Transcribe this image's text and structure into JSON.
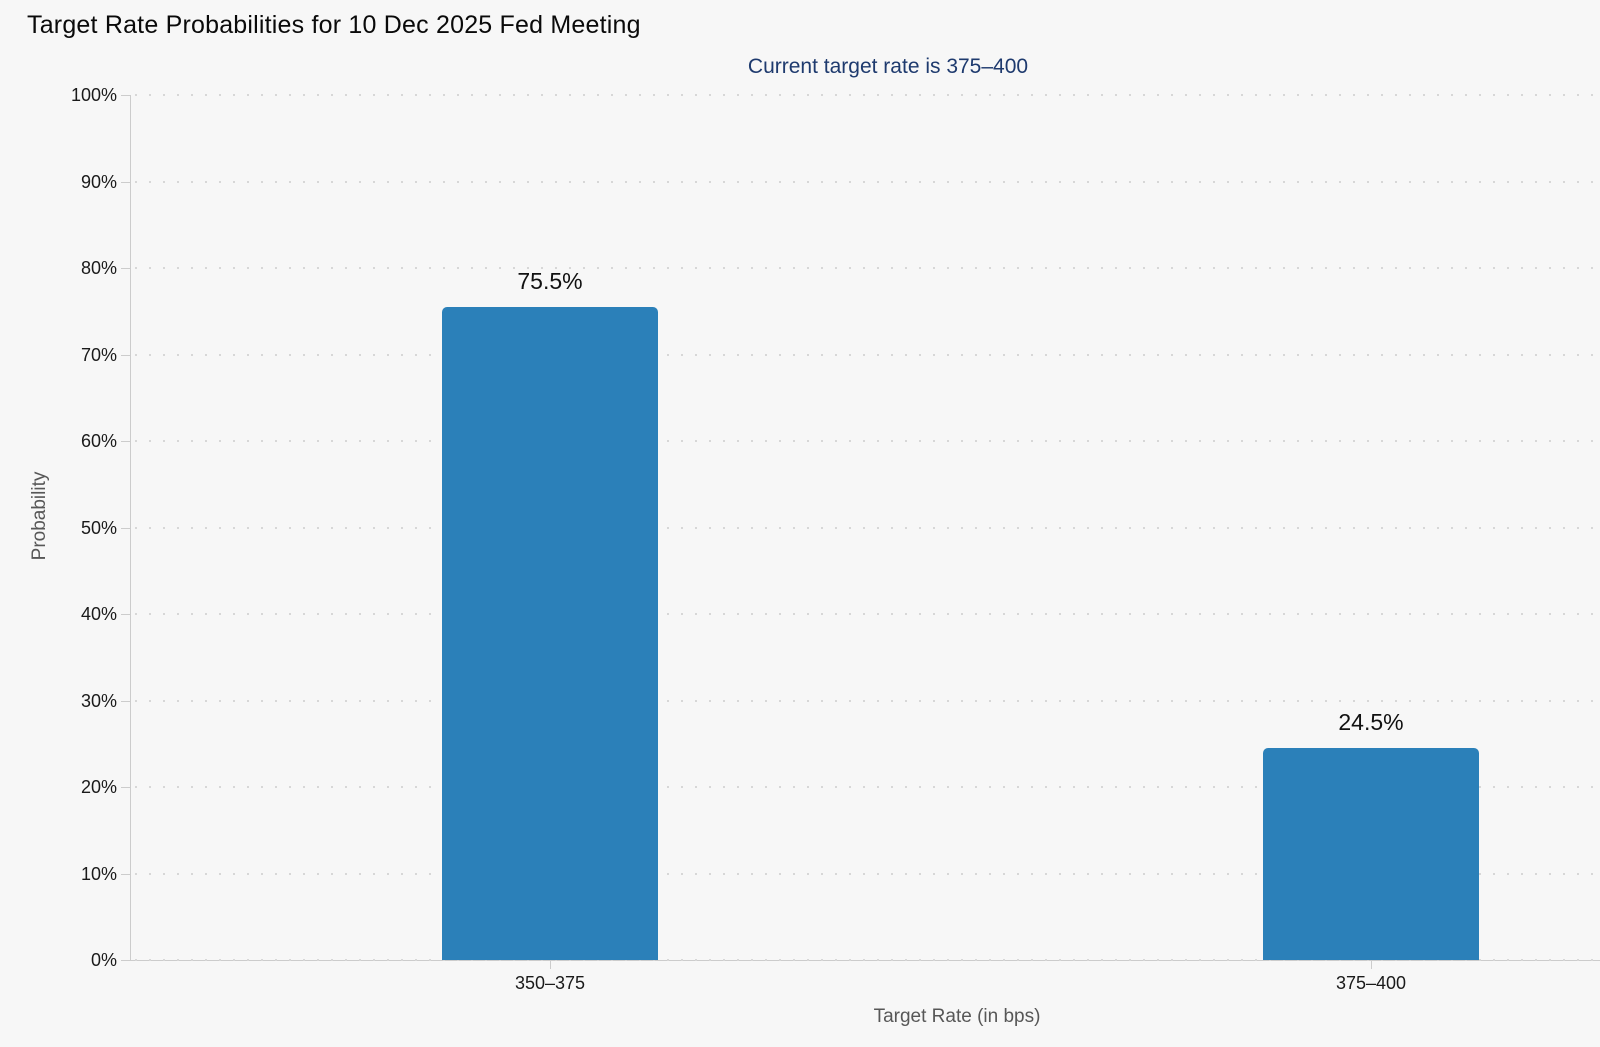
{
  "header": {
    "title": "Target Rate Probabilities for 10 Dec 2025 Fed Meeting",
    "subtitle": "Current target rate is 375–400"
  },
  "colors": {
    "background": "#f7f7f7",
    "bar": "#2b80b9",
    "subtitle": "#1e3a6e",
    "axis_line": "#cccccc",
    "grid_dot": "#d7d7d7",
    "tick_text": "#1a1a1a",
    "axis_title_text": "#575757"
  },
  "chart_data": {
    "type": "bar",
    "title": "Target Rate Probabilities for 10 Dec 2025 Fed Meeting",
    "subtitle": "Current target rate is 375–400",
    "xlabel": "Target Rate (in bps)",
    "ylabel": "Probability",
    "categories": [
      "350–375",
      "375–400"
    ],
    "values": [
      75.5,
      24.5
    ],
    "value_labels": [
      "75.5%",
      "24.5%"
    ],
    "ylim": [
      0,
      100
    ],
    "yticks": [
      0,
      10,
      20,
      30,
      40,
      50,
      60,
      70,
      80,
      90,
      100
    ],
    "ytick_labels": [
      "0%",
      "10%",
      "20%",
      "30%",
      "40%",
      "50%",
      "60%",
      "70%",
      "80%",
      "90%",
      "100%"
    ],
    "grid": "dotted horizontal lines at every 10%",
    "legend": "none",
    "bar_color": "#2b80b9"
  }
}
